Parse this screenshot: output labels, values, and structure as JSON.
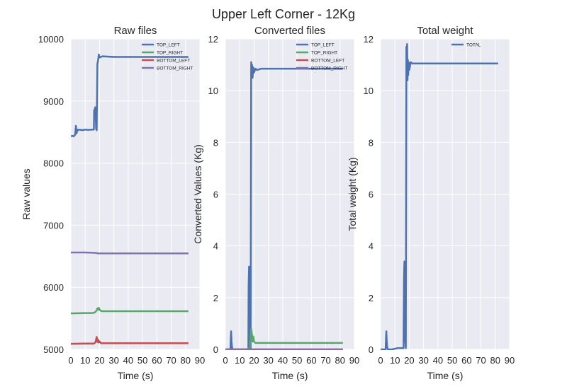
{
  "figure": {
    "suptitle": "Upper Left Corner - 12Kg"
  },
  "chart_data": [
    {
      "type": "line",
      "title": "Raw files",
      "xlabel": "Time (s)",
      "ylabel": "Raw values",
      "xlim": [
        0,
        90
      ],
      "ylim": [
        5000,
        10000
      ],
      "xticks": [
        "0",
        "10",
        "20",
        "30",
        "40",
        "50",
        "60",
        "70",
        "80",
        "90"
      ],
      "yticks": [
        "5000",
        "6000",
        "7000",
        "8000",
        "9000",
        "10000"
      ],
      "grid": true,
      "legend": "top-right",
      "series": [
        {
          "name": "TOP_LEFT",
          "color": "#4c72b0",
          "x": [
            0,
            1,
            2,
            3,
            3.5,
            4,
            4.5,
            5,
            6,
            8,
            10,
            12,
            15,
            16,
            16.2,
            16.5,
            17,
            17.3,
            17.6,
            18,
            18.5,
            19,
            19.5,
            20,
            22,
            30,
            40,
            50,
            60,
            70,
            80,
            82
          ],
          "y": [
            8430,
            8440,
            8430,
            8460,
            8600,
            8480,
            8540,
            8530,
            8540,
            8530,
            8540,
            8535,
            8540,
            8540,
            8850,
            8860,
            8900,
            8800,
            8550,
            8530,
            9600,
            9650,
            9750,
            9700,
            9720,
            9710,
            9710,
            9710,
            9710,
            9710,
            9710,
            9710
          ]
        },
        {
          "name": "TOP_RIGHT",
          "color": "#55a868",
          "x": [
            0,
            10,
            15,
            16,
            17,
            18,
            18.5,
            19,
            19.5,
            20,
            21,
            22,
            30,
            40,
            50,
            60,
            70,
            80,
            82
          ],
          "y": [
            5580,
            5585,
            5585,
            5590,
            5600,
            5630,
            5660,
            5640,
            5670,
            5640,
            5620,
            5615,
            5615,
            5615,
            5615,
            5615,
            5615,
            5615,
            5615
          ]
        },
        {
          "name": "BOTTOM_LEFT",
          "color": "#c44e52",
          "x": [
            0,
            10,
            16,
            17,
            17.5,
            18,
            18.5,
            19,
            19.5,
            20,
            21,
            22,
            30,
            40,
            50,
            60,
            70,
            80,
            82
          ],
          "y": [
            5090,
            5095,
            5095,
            5110,
            5150,
            5200,
            5120,
            5160,
            5110,
            5130,
            5100,
            5100,
            5100,
            5100,
            5100,
            5100,
            5100,
            5100,
            5100
          ]
        },
        {
          "name": "BOTTOM_RIGHT",
          "color": "#8172b2",
          "x": [
            0,
            10,
            17,
            18,
            19,
            20,
            22,
            30,
            40,
            50,
            60,
            70,
            80,
            82
          ],
          "y": [
            6560,
            6560,
            6555,
            6550,
            6545,
            6545,
            6545,
            6545,
            6545,
            6545,
            6545,
            6545,
            6545,
            6545
          ]
        }
      ]
    },
    {
      "type": "line",
      "title": "Converted files",
      "xlabel": "Time (s)",
      "ylabel": "Converted Values (Kg)",
      "xlim": [
        0,
        90
      ],
      "ylim": [
        0,
        12
      ],
      "xticks": [
        "0",
        "10",
        "20",
        "30",
        "40",
        "50",
        "60",
        "70",
        "80",
        "90"
      ],
      "yticks": [
        "0",
        "2",
        "4",
        "6",
        "8",
        "10",
        "12"
      ],
      "grid": true,
      "legend": "top-right",
      "series": [
        {
          "name": "TOP_LEFT",
          "color": "#4c72b0",
          "x": [
            0,
            3.5,
            3.8,
            4,
            4.3,
            4.6,
            5,
            8,
            12,
            16,
            16.2,
            16.5,
            17,
            17.3,
            17.6,
            18,
            18.3,
            18.6,
            19,
            19.5,
            20,
            21,
            22,
            25,
            30,
            40,
            50,
            60,
            70,
            80,
            82
          ],
          "y": [
            0.0,
            0.0,
            0.5,
            0.7,
            0.3,
            0.1,
            0.0,
            0.0,
            0.0,
            0.0,
            2.5,
            3.2,
            1.5,
            0.3,
            0.0,
            11.1,
            10.6,
            11.0,
            10.5,
            10.9,
            10.7,
            10.85,
            10.8,
            10.85,
            10.85,
            10.85,
            10.85,
            10.85,
            10.85,
            10.85,
            10.85
          ]
        },
        {
          "name": "TOP_RIGHT",
          "color": "#55a868",
          "x": [
            0,
            15,
            17,
            17.5,
            18,
            18.5,
            19,
            19.5,
            20,
            21,
            22,
            30,
            40,
            50,
            60,
            70,
            80,
            82
          ],
          "y": [
            0.0,
            0.0,
            0.05,
            0.4,
            0.8,
            0.6,
            0.3,
            0.5,
            0.3,
            0.25,
            0.25,
            0.25,
            0.25,
            0.25,
            0.25,
            0.25,
            0.25,
            0.25
          ]
        },
        {
          "name": "BOTTOM_LEFT",
          "color": "#c44e52",
          "x": [
            0,
            82
          ],
          "y": [
            0.0,
            0.0
          ]
        },
        {
          "name": "BOTTOM_RIGHT",
          "color": "#8172b2",
          "x": [
            0,
            82
          ],
          "y": [
            0.0,
            0.0
          ]
        }
      ]
    },
    {
      "type": "line",
      "title": "Total weight",
      "xlabel": "Time (s)",
      "ylabel": "Total weight (Kg)",
      "xlim": [
        0,
        90
      ],
      "ylim": [
        0,
        12
      ],
      "xticks": [
        "0",
        "10",
        "20",
        "30",
        "40",
        "50",
        "60",
        "70",
        "80",
        "90"
      ],
      "yticks": [
        "0",
        "2",
        "4",
        "6",
        "8",
        "10",
        "12"
      ],
      "grid": true,
      "legend": "top-right",
      "series": [
        {
          "name": "TOTAL",
          "color": "#4c72b0",
          "x": [
            0,
            3.5,
            3.8,
            4,
            4.3,
            4.6,
            5,
            8,
            12,
            15,
            16,
            16.3,
            16.6,
            17,
            17.3,
            17.6,
            18,
            18.2,
            18.5,
            18.8,
            19,
            19.3,
            19.6,
            20,
            21,
            22,
            25,
            30,
            40,
            50,
            60,
            70,
            80,
            82
          ],
          "y": [
            0.0,
            0.0,
            0.5,
            0.7,
            0.3,
            0.1,
            0.0,
            0.0,
            0.05,
            0.05,
            0.05,
            2.7,
            3.4,
            1.6,
            0.3,
            0.05,
            11.7,
            10.8,
            11.8,
            10.4,
            11.2,
            10.6,
            11.1,
            10.8,
            11.1,
            11.05,
            11.05,
            11.05,
            11.05,
            11.05,
            11.05,
            11.05,
            11.05,
            11.05
          ]
        }
      ]
    }
  ]
}
